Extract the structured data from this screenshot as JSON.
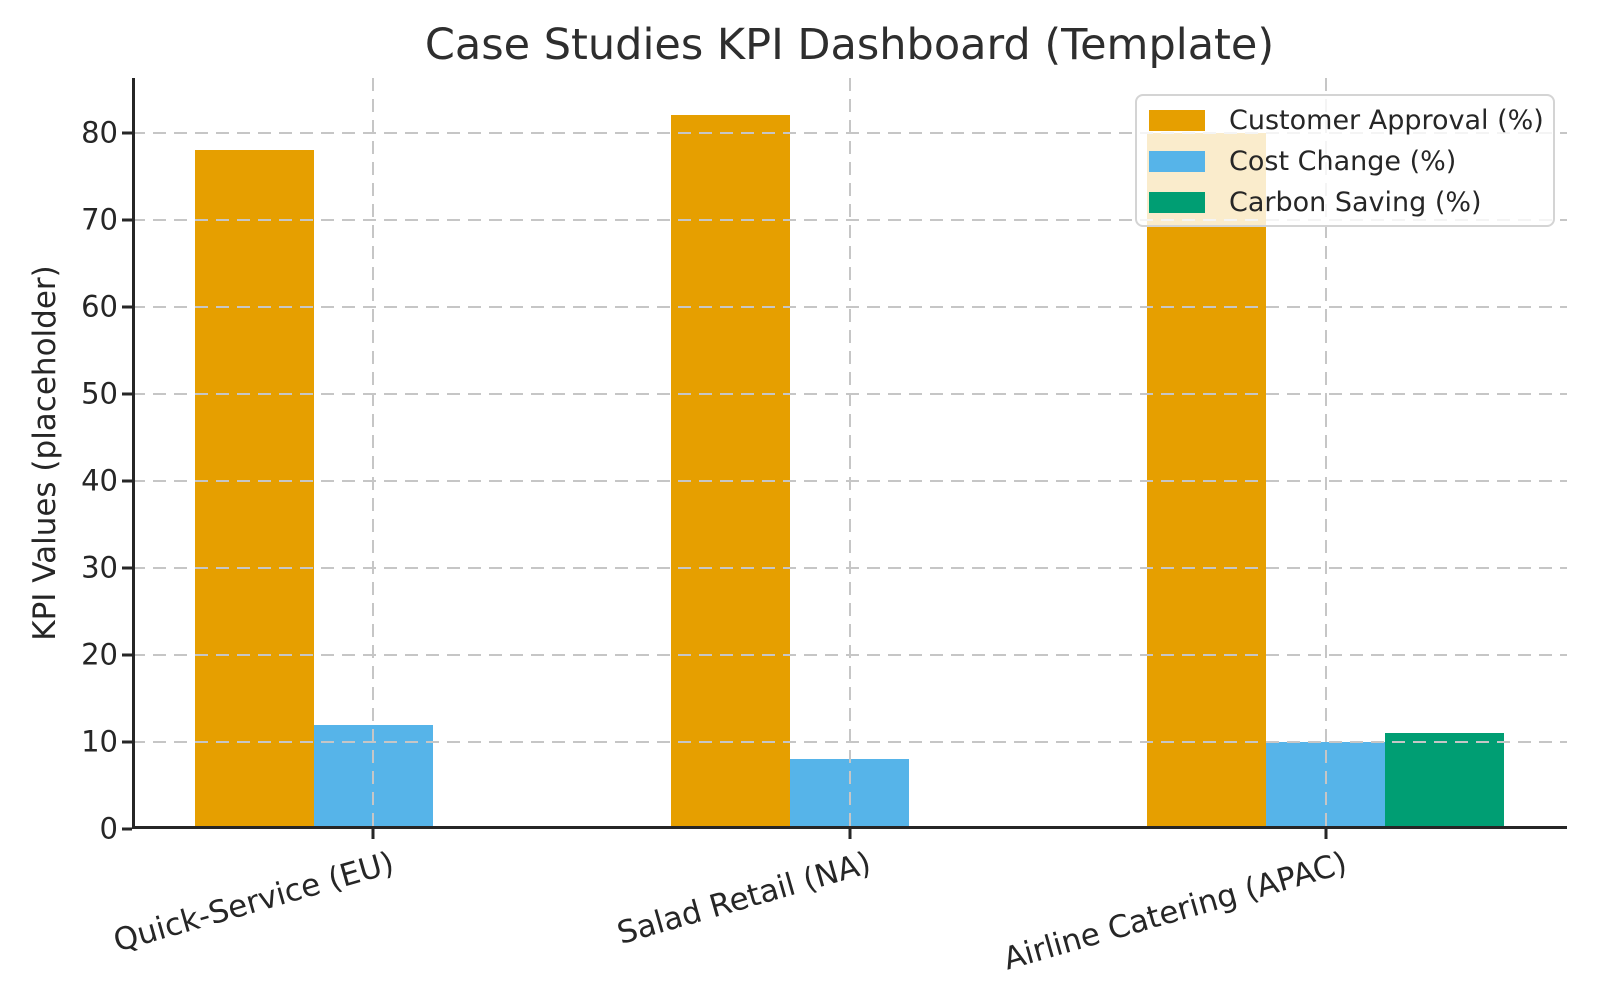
{
  "chart_data": {
    "type": "bar",
    "title": "Case Studies KPI Dashboard (Template)",
    "xlabel": "",
    "ylabel": "KPI Values (placeholder)",
    "categories": [
      "Quick-Service (EU)",
      "Salad Retail (NA)",
      "Airline Catering (APAC)"
    ],
    "series": [
      {
        "name": "Customer Approval (%)",
        "color": "#E69F00",
        "values": [
          78,
          82,
          80
        ]
      },
      {
        "name": "Cost Change (%)",
        "color": "#56B4E9",
        "values": [
          12,
          8,
          10
        ]
      },
      {
        "name": "Carbon Saving (%)",
        "color": "#009E73",
        "values": [
          0,
          0,
          11
        ]
      }
    ],
    "ylim": [
      0,
      86.3
    ],
    "yticks": [
      0,
      10,
      20,
      30,
      40,
      50,
      60,
      70,
      80
    ],
    "grid": true,
    "grid_style": "dashed",
    "grid_over_bars": true,
    "grid_color": "#c6c6c6",
    "axis_color": "#262626",
    "legend_position": "upper right",
    "x_tick_rotation": 15
  }
}
